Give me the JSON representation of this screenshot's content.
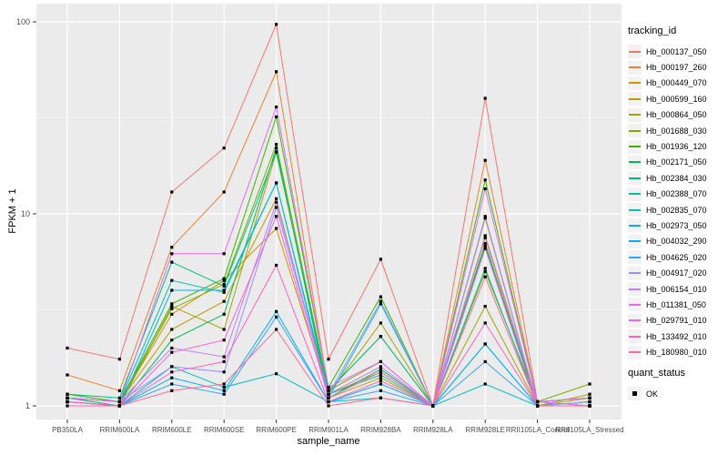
{
  "chart_data": {
    "type": "line",
    "title": "",
    "xlabel": "sample_name",
    "ylabel": "FPKM + 1",
    "yscale": "log10",
    "yticks": [
      1,
      10,
      100
    ],
    "ytick_labels": [
      "1",
      "10",
      "100"
    ],
    "minor_yticks": [
      3.162,
      31.62
    ],
    "ylim": [
      0.85,
      124
    ],
    "grid": true,
    "legend_position": "right",
    "marker": {
      "shape": "square",
      "color": "#000000"
    },
    "categories": [
      "PB350LA",
      "RRIM600LA",
      "RRIM600LE",
      "RRIM600SE",
      "RRIM600PE",
      "RRIM901LA",
      "RRIM928BA",
      "RRIM928LA",
      "RRIM928LE",
      "RRII105LA_Control",
      "RRII105LA_Stressed"
    ],
    "series": [
      {
        "name": "Hb_000137_050",
        "color": "#F8766D",
        "values": [
          2.0,
          1.75,
          13,
          22,
          97,
          1.75,
          5.8,
          1.0,
          40,
          1.05,
          1.0
        ]
      },
      {
        "name": "Hb_000197_260",
        "color": "#EA8331",
        "values": [
          1.45,
          1.2,
          6.7,
          13,
          55,
          1.2,
          2.3,
          1.0,
          19,
          1.05,
          1.0
        ]
      },
      {
        "name": "Hb_000449_070",
        "color": "#D89000",
        "values": [
          1.1,
          1.05,
          3.0,
          4.5,
          8.4,
          1.15,
          1.5,
          1.0,
          7.5,
          1.0,
          1.05
        ]
      },
      {
        "name": "Hb_000599_160",
        "color": "#C09B00",
        "values": [
          1.1,
          1.05,
          2.5,
          3.5,
          12,
          1.1,
          1.4,
          1.0,
          9.5,
          1.0,
          1.1
        ]
      },
      {
        "name": "Hb_000864_050",
        "color": "#A3A500",
        "values": [
          1.05,
          1.0,
          3.3,
          2.5,
          21,
          1.15,
          2.7,
          1.0,
          3.3,
          1.0,
          1.15
        ]
      },
      {
        "name": "Hb_001688_030",
        "color": "#7CAE00",
        "values": [
          1.1,
          1.05,
          3.2,
          4.3,
          23,
          1.2,
          1.7,
          1.0,
          5.0,
          1.05,
          1.3
        ]
      },
      {
        "name": "Hb_001936_120",
        "color": "#39B600",
        "values": [
          1.15,
          1.05,
          3.4,
          4.6,
          32,
          1.25,
          3.7,
          1.0,
          15,
          1.05,
          1.1
        ]
      },
      {
        "name": "Hb_002171_050",
        "color": "#00BB4E",
        "values": [
          1.1,
          1.0,
          2.2,
          3.0,
          22,
          1.1,
          1.55,
          1.0,
          7.0,
          1.0,
          1.05
        ]
      },
      {
        "name": "Hb_002384_030",
        "color": "#00BF7D",
        "values": [
          1.15,
          1.1,
          5.6,
          4.2,
          21,
          1.2,
          2.3,
          1.0,
          6.8,
          1.05,
          1.1
        ]
      },
      {
        "name": "Hb_002388_070",
        "color": "#00C1A3",
        "values": [
          1.1,
          1.05,
          4.5,
          3.9,
          14.5,
          1.15,
          1.45,
          1.0,
          5.2,
          1.0,
          1.05
        ]
      },
      {
        "name": "Hb_002835_070",
        "color": "#00BFC4",
        "values": [
          1.05,
          1.0,
          1.6,
          1.25,
          1.47,
          1.05,
          1.1,
          1.0,
          1.3,
          1.0,
          1.0
        ]
      },
      {
        "name": "Hb_002973_050",
        "color": "#00BAE0",
        "values": [
          1.05,
          1.0,
          4.0,
          4.0,
          14.5,
          1.1,
          3.4,
          1.0,
          2.1,
          1.0,
          1.0
        ]
      },
      {
        "name": "Hb_004032_290",
        "color": "#00B0F6",
        "values": [
          1.05,
          1.0,
          1.4,
          1.2,
          3.1,
          1.05,
          1.3,
          1.0,
          2.1,
          1.0,
          1.0
        ]
      },
      {
        "name": "Hb_004625_020",
        "color": "#35A2FF",
        "values": [
          1.05,
          1.0,
          1.3,
          1.15,
          2.9,
          1.05,
          1.2,
          1.0,
          1.7,
          1.0,
          1.0
        ]
      },
      {
        "name": "Hb_004917_020",
        "color": "#9590FF",
        "values": [
          1.1,
          1.05,
          1.6,
          1.5,
          10.8,
          1.15,
          3.5,
          1.0,
          9.7,
          1.0,
          1.05
        ]
      },
      {
        "name": "Hb_006154_010",
        "color": "#C77CFF",
        "values": [
          1.1,
          1.05,
          2.0,
          1.8,
          11.5,
          1.15,
          1.6,
          1.0,
          7.7,
          1.05,
          1.0
        ]
      },
      {
        "name": "Hb_011381_050",
        "color": "#E76BF3",
        "values": [
          1.1,
          1.05,
          6.2,
          6.2,
          36,
          1.25,
          1.7,
          1.0,
          13.5,
          1.05,
          1.1
        ]
      },
      {
        "name": "Hb_029791_010",
        "color": "#FA62DB",
        "values": [
          1.05,
          1.0,
          1.9,
          2.2,
          9.7,
          1.1,
          1.5,
          1.0,
          6.6,
          1.0,
          1.0
        ]
      },
      {
        "name": "Hb_133492_010",
        "color": "#FF61C3",
        "values": [
          1.05,
          1.0,
          1.5,
          1.7,
          5.4,
          1.05,
          1.35,
          1.0,
          2.7,
          1.0,
          1.0
        ]
      },
      {
        "name": "Hb_180980_010",
        "color": "#FF6A98",
        "values": [
          1.0,
          1.0,
          1.2,
          1.3,
          2.5,
          1.0,
          1.1,
          1.0,
          4.7,
          1.0,
          1.0
        ]
      }
    ]
  },
  "legend": {
    "tracking_title": "tracking_id",
    "quant_title": "quant_status",
    "quant_items": [
      {
        "label": "OK",
        "marker": "black-square"
      }
    ]
  },
  "colors": {
    "panel_bg": "#EBEBEB",
    "grid_major": "#FFFFFF",
    "grid_minor": "#F5F5F5",
    "axis_text": "#4D4D4D",
    "tick_mark": "#333333",
    "legend_key_bg": "#F2F2F2",
    "point": "#000000"
  }
}
